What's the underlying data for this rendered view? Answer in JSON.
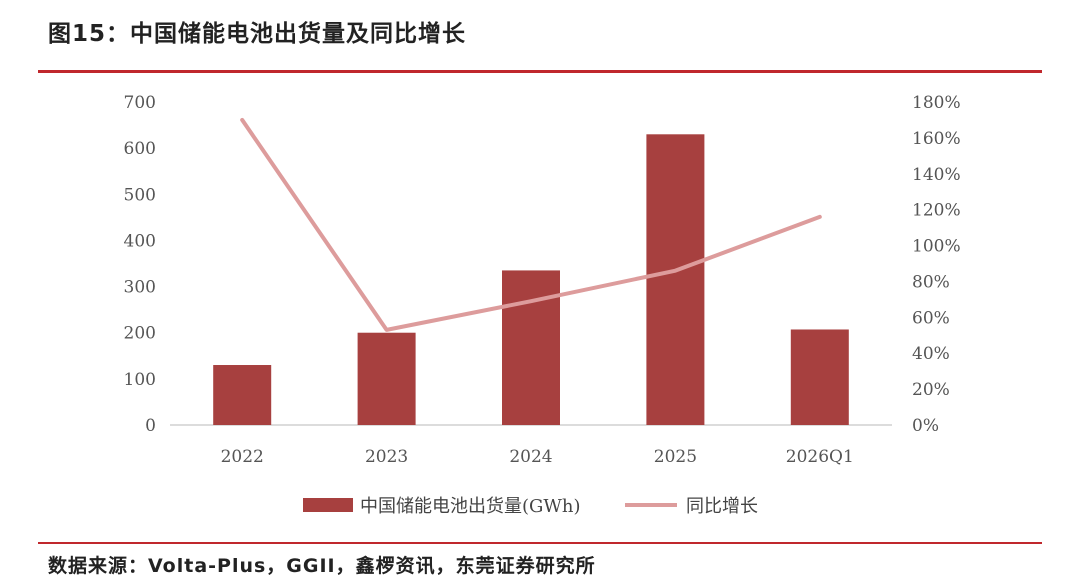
{
  "header": {
    "title": "图15：中国储能电池出货量及同比增长"
  },
  "footer": {
    "source": "数据来源：Volta-Plus，GGII，鑫椤资讯，东莞证券研究所"
  },
  "chart_data": {
    "type": "bar",
    "title": "图15：中国储能电池出货量及同比增长",
    "categories": [
      "2022",
      "2023",
      "2024",
      "2025",
      "2026Q1"
    ],
    "series": [
      {
        "name": "中国储能电池出货量(GWh)",
        "type": "bar",
        "axis": "left",
        "color": "#a7403f",
        "values": [
          130,
          200,
          335,
          630,
          207
        ]
      },
      {
        "name": "同比增长",
        "type": "line",
        "axis": "right",
        "color": "#dd9c9c",
        "values": [
          1.7,
          0.53,
          0.69,
          0.86,
          1.16
        ]
      }
    ],
    "y_left": {
      "min": 0,
      "max": 700,
      "ticks": [
        "0",
        "100",
        "200",
        "300",
        "400",
        "500",
        "600",
        "700"
      ]
    },
    "y_right": {
      "min": 0,
      "max": 1.8,
      "ticks": [
        "0%",
        "20%",
        "40%",
        "60%",
        "80%",
        "100%",
        "120%",
        "140%",
        "160%",
        "180%"
      ]
    },
    "grid": false,
    "legend": "bottom"
  }
}
